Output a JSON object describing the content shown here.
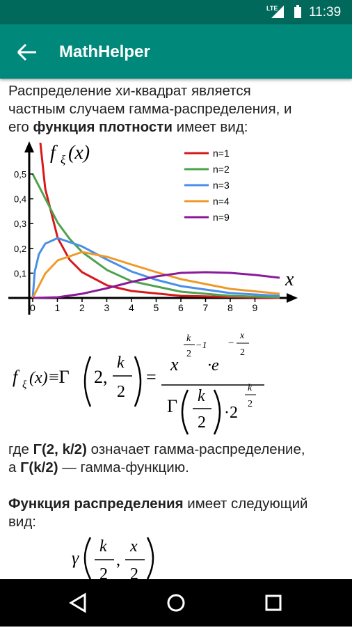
{
  "status_bar": {
    "network": "LTE",
    "time": "11:39"
  },
  "app_bar": {
    "title": "MathHelper"
  },
  "intro": [
    [
      {
        "text": "Распределение хи-квадрат является"
      }
    ],
    [
      {
        "text": "частным случаем гамма-распределения, и"
      }
    ],
    [
      {
        "text": "его "
      },
      {
        "text": "функция плотности"
      },
      {
        "text": " имеет вид:"
      }
    ]
  ],
  "figure": {
    "ylabel": [
      "f",
      "ξ",
      "(x)"
    ],
    "xlabel": "x",
    "xticks": [
      0,
      1,
      2,
      3,
      4,
      5,
      6,
      7,
      8,
      9
    ],
    "yticks": [
      {
        "value": 0.1,
        "label": "0,1"
      },
      {
        "value": 0.2,
        "label": "0,2"
      },
      {
        "value": 0.3,
        "label": "0,3"
      },
      {
        "value": 0.4,
        "label": "0,4"
      },
      {
        "value": 0.5,
        "label": "0,5"
      }
    ],
    "series": [
      {
        "name": "n=1",
        "color": "#d7191c"
      },
      {
        "name": "n=2",
        "color": "#4ea24e"
      },
      {
        "name": "n=3",
        "color": "#4a8fe7"
      },
      {
        "name": "n=4",
        "color": "#ee9a2a"
      },
      {
        "name": "n=9",
        "color": "#8b1a9b"
      }
    ]
  },
  "density_formula": [
    "f",
    "ξ",
    "(x)",
    "≡Γ",
    "2,",
    "k",
    "2",
    "=",
    "x",
    "k",
    "2",
    "−1",
    "·e",
    "−",
    "x",
    "2",
    "Γ",
    "k",
    "2",
    "·2",
    "k",
    "2"
  ],
  "explain": [
    [
      {
        "text": "где "
      },
      {
        "text": "Γ(2, k/2)"
      },
      {
        "text": " означает гамма-распределение,"
      }
    ],
    [
      {
        "text": "а "
      },
      {
        "text": "Γ(k/2)"
      },
      {
        "text": " — гамма-функцию."
      }
    ]
  ],
  "cdf_intro": [
    [
      {
        "text": "Функция распределения"
      },
      {
        "text": " имеет следующий"
      }
    ],
    [
      {
        "text": "вид:"
      }
    ]
  ],
  "cdf_formula": [
    "γ",
    "k",
    "2",
    ",",
    "x",
    "2"
  ]
}
